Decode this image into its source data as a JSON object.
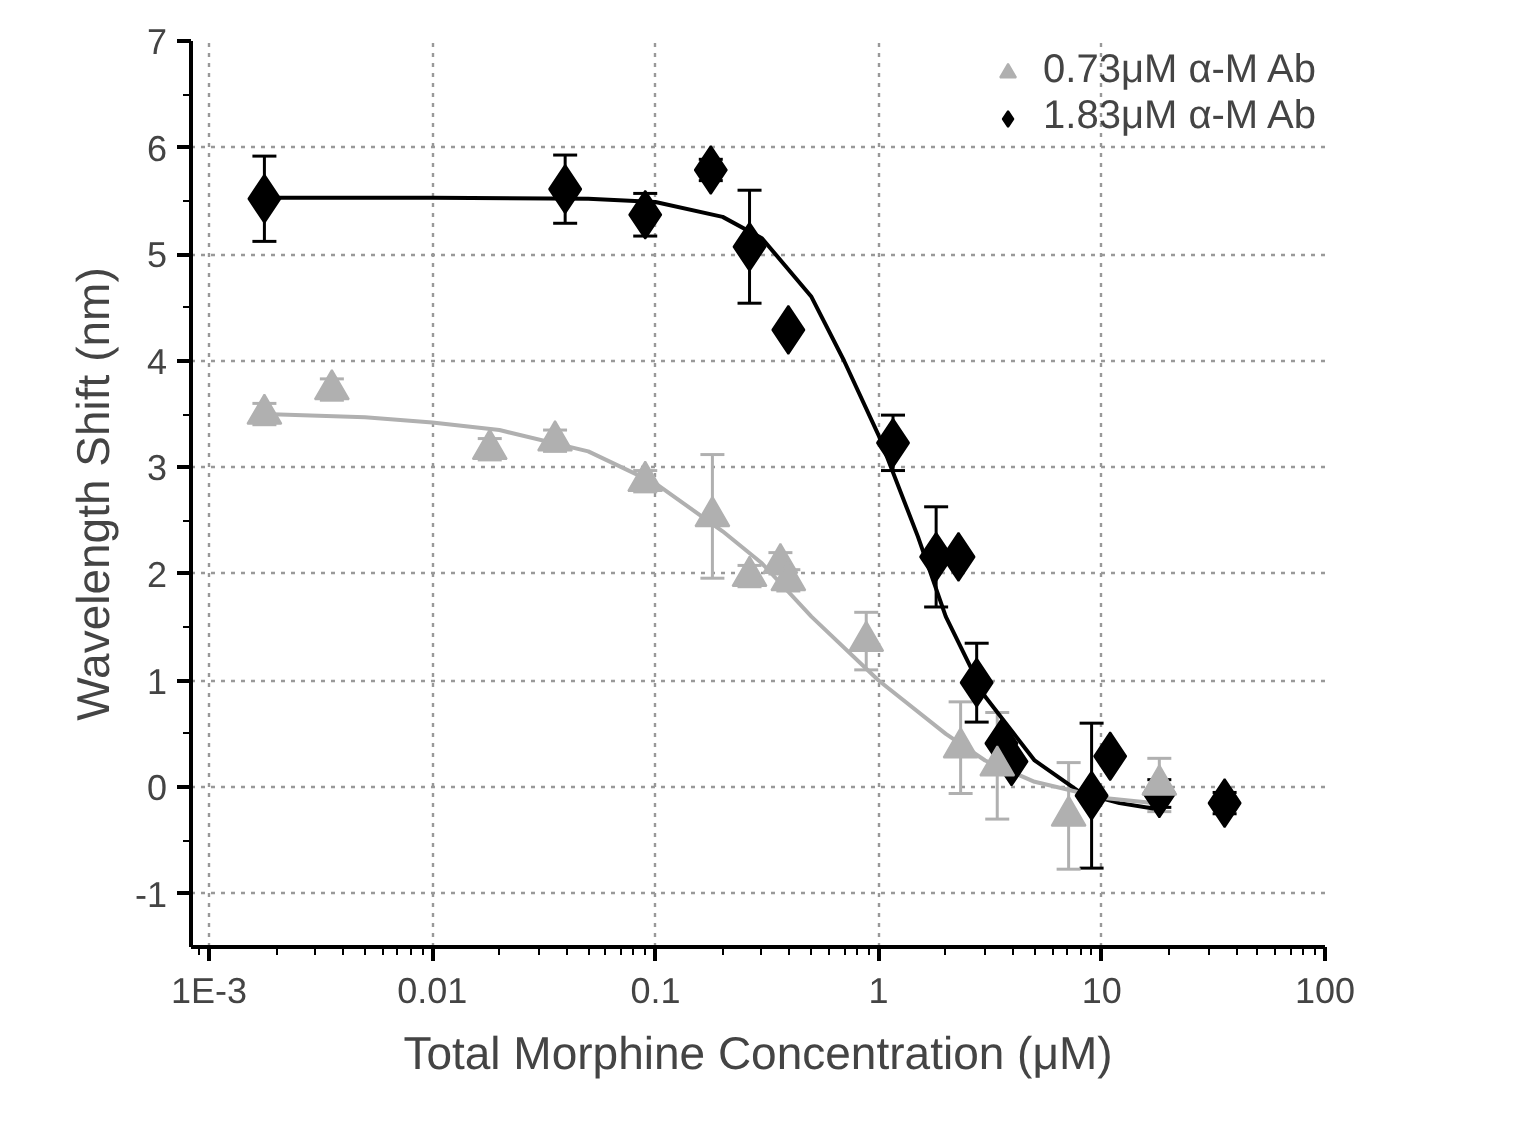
{
  "chart_data": {
    "type": "scatter",
    "xlabel": "Total Morphine Concentration (μM)",
    "ylabel": "Wavelength Shift (nm)",
    "log": "x",
    "xlim": [
      0.00083,
      100
    ],
    "ylim": [
      -1.5,
      7
    ],
    "xticks": [
      {
        "value": 0.001,
        "label": "1E-3"
      },
      0.01,
      0.1,
      1,
      10,
      100
    ],
    "yticks": [
      -1,
      0,
      1,
      2,
      3,
      4,
      5,
      6,
      7
    ],
    "grid": true,
    "legend": "top right",
    "series": [
      {
        "name": "0.73μM α-M Ab",
        "color": "#b0b0b0",
        "marker": "triangle",
        "x": [
          0.00177,
          0.00355,
          0.0181,
          0.0355,
          0.09,
          0.18,
          0.264,
          0.363,
          0.394,
          0.88,
          2.33,
          3.4,
          7.1,
          18.1
        ],
        "values": [
          3.5,
          3.73,
          3.17,
          3.25,
          2.87,
          2.54,
          1.98,
          2.1,
          1.94,
          1.37,
          0.37,
          0.2,
          -0.27,
          0.02
        ],
        "errors": [
          0.1,
          0.1,
          0.1,
          0.1,
          0.1,
          0.58,
          0.1,
          0.1,
          0.1,
          0.27,
          0.43,
          0.5,
          0.5,
          0.25
        ]
      },
      {
        "name": "1.83μM α-M Ab",
        "color": "#000000",
        "marker": "diamond",
        "x": [
          0.00177,
          0.0394,
          0.09,
          0.177,
          0.264,
          0.394,
          1.16,
          1.81,
          2.28,
          2.75,
          3.55,
          3.94,
          9.0,
          10.9,
          18.1,
          35.5
        ],
        "values": [
          5.52,
          5.61,
          5.37,
          5.79,
          5.07,
          4.29,
          3.23,
          2.16,
          2.16,
          0.98,
          0.41,
          0.24,
          -0.08,
          0.29,
          -0.06,
          -0.15
        ],
        "errors": [
          0.4,
          0.32,
          0.2,
          0.1,
          0.53,
          null,
          0.26,
          0.47,
          null,
          0.37,
          null,
          null,
          0.68,
          null,
          0.13,
          0.1
        ]
      },
      {
        "type": "line",
        "color": "#b0b0b0",
        "marker": "none",
        "x": [
          0.00177,
          0.005,
          0.01,
          0.02,
          0.05,
          0.1,
          0.2,
          0.3,
          0.5,
          1,
          2,
          3,
          5,
          10,
          17
        ],
        "values": [
          3.5,
          3.47,
          3.42,
          3.35,
          3.15,
          2.85,
          2.4,
          2.1,
          1.6,
          1.0,
          0.5,
          0.25,
          0.05,
          -0.1,
          -0.15
        ]
      },
      {
        "type": "line",
        "color": "#000000",
        "marker": "none",
        "x": [
          0.00177,
          0.01,
          0.05,
          0.1,
          0.2,
          0.3,
          0.5,
          0.7,
          1.0,
          1.5,
          2,
          3,
          5,
          8,
          12,
          17
        ],
        "values": [
          5.53,
          5.53,
          5.52,
          5.49,
          5.35,
          5.15,
          4.6,
          4.0,
          3.3,
          2.35,
          1.6,
          0.85,
          0.25,
          -0.05,
          -0.15,
          -0.2
        ]
      }
    ]
  }
}
